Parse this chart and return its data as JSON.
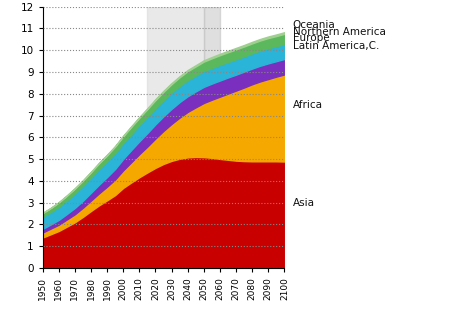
{
  "years": [
    1950,
    1955,
    1960,
    1965,
    1970,
    1975,
    1980,
    1985,
    1990,
    1995,
    2000,
    2005,
    2010,
    2015,
    2020,
    2025,
    2030,
    2035,
    2040,
    2045,
    2050,
    2055,
    2060,
    2065,
    2070,
    2075,
    2080,
    2085,
    2090,
    2095,
    2100
  ],
  "asia": [
    1.4,
    1.55,
    1.7,
    1.9,
    2.1,
    2.35,
    2.62,
    2.88,
    3.11,
    3.35,
    3.68,
    3.93,
    4.17,
    4.39,
    4.6,
    4.78,
    4.92,
    5.02,
    5.08,
    5.1,
    5.09,
    5.06,
    5.01,
    4.97,
    4.93,
    4.91,
    4.9,
    4.9,
    4.9,
    4.9,
    4.89
  ],
  "africa": [
    0.23,
    0.26,
    0.29,
    0.33,
    0.37,
    0.42,
    0.48,
    0.55,
    0.63,
    0.72,
    0.81,
    0.93,
    1.06,
    1.19,
    1.35,
    1.52,
    1.7,
    1.89,
    2.09,
    2.28,
    2.49,
    2.67,
    2.86,
    3.04,
    3.22,
    3.38,
    3.54,
    3.67,
    3.78,
    3.89,
    4.0
  ],
  "latin_america": [
    0.17,
    0.19,
    0.22,
    0.25,
    0.29,
    0.32,
    0.36,
    0.4,
    0.44,
    0.48,
    0.52,
    0.56,
    0.59,
    0.62,
    0.65,
    0.67,
    0.69,
    0.71,
    0.72,
    0.73,
    0.74,
    0.74,
    0.74,
    0.74,
    0.73,
    0.73,
    0.72,
    0.72,
    0.72,
    0.71,
    0.71
  ],
  "europe": [
    0.55,
    0.57,
    0.6,
    0.63,
    0.66,
    0.68,
    0.69,
    0.71,
    0.72,
    0.73,
    0.73,
    0.73,
    0.74,
    0.74,
    0.745,
    0.745,
    0.745,
    0.74,
    0.74,
    0.73,
    0.73,
    0.72,
    0.72,
    0.71,
    0.71,
    0.7,
    0.7,
    0.7,
    0.7,
    0.69,
    0.69
  ],
  "northern_america": [
    0.17,
    0.18,
    0.2,
    0.21,
    0.23,
    0.24,
    0.25,
    0.27,
    0.28,
    0.3,
    0.31,
    0.33,
    0.34,
    0.36,
    0.37,
    0.38,
    0.39,
    0.4,
    0.41,
    0.42,
    0.43,
    0.44,
    0.445,
    0.449,
    0.452,
    0.455,
    0.457,
    0.459,
    0.461,
    0.463,
    0.465
  ],
  "oceania": [
    0.013,
    0.014,
    0.016,
    0.017,
    0.019,
    0.021,
    0.023,
    0.025,
    0.027,
    0.029,
    0.031,
    0.034,
    0.036,
    0.039,
    0.042,
    0.045,
    0.048,
    0.05,
    0.053,
    0.056,
    0.059,
    0.061,
    0.063,
    0.065,
    0.067,
    0.068,
    0.07,
    0.071,
    0.072,
    0.073,
    0.074
  ],
  "colors": {
    "asia": "#c80000",
    "africa": "#f5a800",
    "latin_america": "#7b2fbe",
    "europe": "#29b4d8",
    "northern_america": "#5cb85c",
    "oceania": "#a0d090"
  },
  "region_labels": {
    "asia": "Asia",
    "africa": "Africa",
    "latin_america": "Latin America,C.",
    "europe": "Europe",
    "northern_america": "Northern America",
    "oceania": "Oceania"
  },
  "label_ypos": {
    "oceania": 11.15,
    "northern_america": 10.85,
    "europe": 10.55,
    "latin_america": 10.2,
    "africa": 7.5,
    "asia": 3.0
  },
  "ylim": [
    0,
    12
  ],
  "yticks": [
    0,
    1,
    2,
    3,
    4,
    5,
    6,
    7,
    8,
    9,
    10,
    11,
    12
  ],
  "shade_light": [
    2015,
    2050
  ],
  "shade_dark": [
    2050,
    2060
  ],
  "background_color": "#ffffff"
}
